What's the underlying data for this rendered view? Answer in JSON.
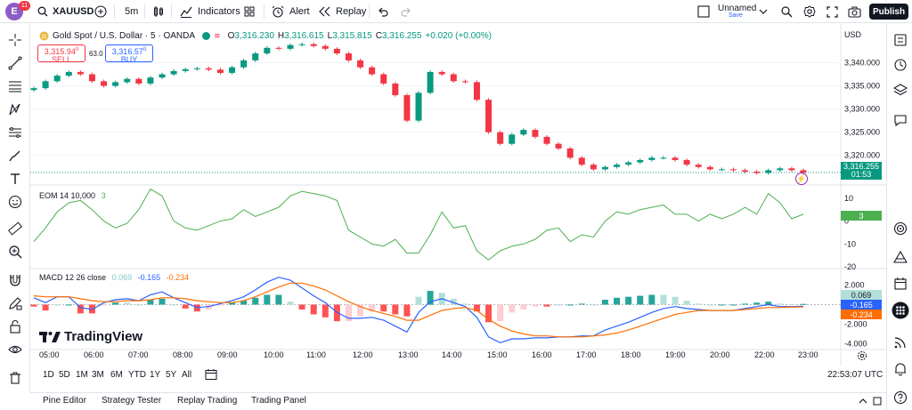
{
  "topbar": {
    "avatar_letter": "E",
    "avatar_badge": "11",
    "symbol": "XAUUSD",
    "interval": "5m",
    "indicators_label": "Indicators",
    "alert_label": "Alert",
    "replay_label": "Replay",
    "layout_name": "Unnamed",
    "layout_save": "Save",
    "publish_label": "Publish"
  },
  "legend": {
    "title": "Gold Spot / U.S. Dollar · 5 · OANDA",
    "o_label": "O",
    "o_value": "3,316.230",
    "h_label": "H",
    "h_value": "3,316.615",
    "l_label": "L",
    "l_value": "3,315.815",
    "c_label": "C",
    "c_value": "3,316.255",
    "change": "+0.020 (+0.00%)",
    "sell_price": "3,315.94",
    "sell_sup": "0",
    "sell_label": "SELL",
    "buy_price": "3,316.57",
    "buy_sup": "0",
    "buy_label": "BUY",
    "spread": "63.0"
  },
  "price_axis": {
    "currency": "USD",
    "ticks": [
      "3,340.000",
      "3,335.000",
      "3,330.000",
      "3,325.000",
      "3,320.000"
    ],
    "last_price": "3,316.255",
    "countdown": "01:53"
  },
  "eom": {
    "title": "EOM 14 10,000",
    "value": "3",
    "ticks": [
      "10",
      "0",
      "-10",
      "-20"
    ]
  },
  "macd": {
    "title": "MACD 12 26 close",
    "hist_value": "0.069",
    "macd_value": "-0.165",
    "signal_value": "-0.234",
    "ticks": [
      "2.000",
      "-2.000",
      "-4.000"
    ]
  },
  "time_axis": [
    "05:00",
    "06:00",
    "07:00",
    "08:00",
    "09:00",
    "10:00",
    "11:00",
    "12:00",
    "13:00",
    "14:00",
    "15:00",
    "16:00",
    "17:00",
    "18:00",
    "19:00",
    "20:00",
    "22:00",
    "23:00"
  ],
  "ranges": [
    "1D",
    "5D",
    "1M",
    "3M",
    "6M",
    "YTD",
    "1Y",
    "5Y",
    "All"
  ],
  "clock": "22:53:07 UTC",
  "bottom_tabs": [
    "Pine Editor",
    "Strategy Tester",
    "Replay Trading",
    "Trading Panel"
  ],
  "watermark": "TradingView",
  "colors": {
    "up": "#089981",
    "down": "#f23645",
    "eom": "#4caf50",
    "macd": "#2962ff",
    "signal": "#ff6d00",
    "accent": "#2962ff"
  },
  "chart_data": {
    "type": "candlestick",
    "price_close_series": [
      3334.5,
      3336.0,
      3337.2,
      3338.0,
      3337.5,
      3336.0,
      3335.0,
      3335.8,
      3336.5,
      3335.5,
      3336.8,
      3337.5,
      3338.2,
      3338.6,
      3338.8,
      3338.5,
      3337.8,
      3339.0,
      3340.5,
      3342.0,
      3343.2,
      3343.0,
      3343.8,
      3344.0,
      3343.6,
      3343.0,
      3342.0,
      3340.5,
      3339.0,
      3337.5,
      3335.5,
      3333.0,
      3327.5,
      3333.5,
      3338.0,
      3337.5,
      3336.0,
      3335.8,
      3332.0,
      3325.0,
      3322.5,
      3324.5,
      3325.5,
      3324.0,
      3322.5,
      3321.5,
      3319.5,
      3318.0,
      3317.0,
      3317.5,
      3318.0,
      3318.5,
      3319.0,
      3319.5,
      3319.5,
      3319.0,
      3318.0,
      3317.5,
      3317.0,
      3317.0,
      3316.8,
      3316.5,
      3316.2,
      3316.8,
      3317.2,
      3316.8,
      3316.3
    ],
    "eom_series": [
      -9,
      -3,
      4,
      8,
      9,
      5,
      0,
      -3,
      -1,
      5,
      14,
      11,
      0,
      -3,
      -4,
      -2,
      0,
      1,
      5,
      2,
      4,
      6,
      11,
      13,
      12,
      11,
      9,
      -4,
      -7,
      -10,
      -11,
      -8,
      -14,
      -14,
      -6,
      4,
      -3,
      -2,
      -13,
      -17,
      -13,
      -11,
      -10,
      -8,
      -4,
      -3,
      -9,
      -6,
      -7,
      0,
      4,
      3,
      5,
      6,
      7,
      3,
      3,
      0,
      3,
      1,
      3,
      6,
      3,
      12,
      8,
      1,
      3
    ],
    "macd_series": [
      0.7,
      0.2,
      0.8,
      0.8,
      -0.3,
      -0.5,
      0.2,
      0.5,
      0.6,
      0.4,
      1.0,
      1.3,
      0.7,
      0.2,
      -0.3,
      -0.2,
      0.1,
      0.4,
      0.8,
      1.5,
      2.3,
      2.8,
      2.5,
      1.7,
      0.9,
      0.2,
      -0.8,
      -1.4,
      -1.4,
      -1.3,
      -1.6,
      -2.2,
      -2.8,
      -0.8,
      0.3,
      0.6,
      0.2,
      -0.2,
      -1.3,
      -3.3,
      -3.9,
      -3.5,
      -3.5,
      -3.4,
      -3.4,
      -3.3,
      -3.3,
      -3.2,
      -3.2,
      -2.6,
      -2.2,
      -1.8,
      -1.3,
      -0.8,
      -0.4,
      -0.2,
      -0.4,
      -0.5,
      -0.6,
      -0.6,
      -0.6,
      -0.4,
      -0.2,
      0.0,
      -0.2,
      -0.2,
      -0.165
    ],
    "signal_series": [
      0.9,
      0.8,
      0.8,
      0.8,
      0.6,
      0.4,
      0.3,
      0.3,
      0.4,
      0.4,
      0.5,
      0.7,
      0.7,
      0.6,
      0.4,
      0.3,
      0.2,
      0.2,
      0.4,
      0.8,
      1.3,
      1.8,
      2.2,
      2.2,
      1.9,
      1.5,
      0.9,
      0.3,
      -0.2,
      -0.6,
      -0.9,
      -1.2,
      -1.6,
      -1.6,
      -1.1,
      -0.6,
      -0.4,
      -0.3,
      -0.6,
      -1.5,
      -2.2,
      -2.7,
      -3.0,
      -3.2,
      -3.2,
      -3.3,
      -3.3,
      -3.3,
      -3.2,
      -3.1,
      -2.9,
      -2.6,
      -2.2,
      -1.8,
      -1.4,
      -1.0,
      -0.8,
      -0.6,
      -0.6,
      -0.6,
      -0.6,
      -0.5,
      -0.4,
      -0.3,
      -0.3,
      -0.25,
      -0.234
    ],
    "price_ylim": [
      3314,
      3347
    ],
    "eom_ylim": [
      -20,
      15
    ],
    "macd_ylim": [
      -4.5,
      3.5
    ]
  }
}
